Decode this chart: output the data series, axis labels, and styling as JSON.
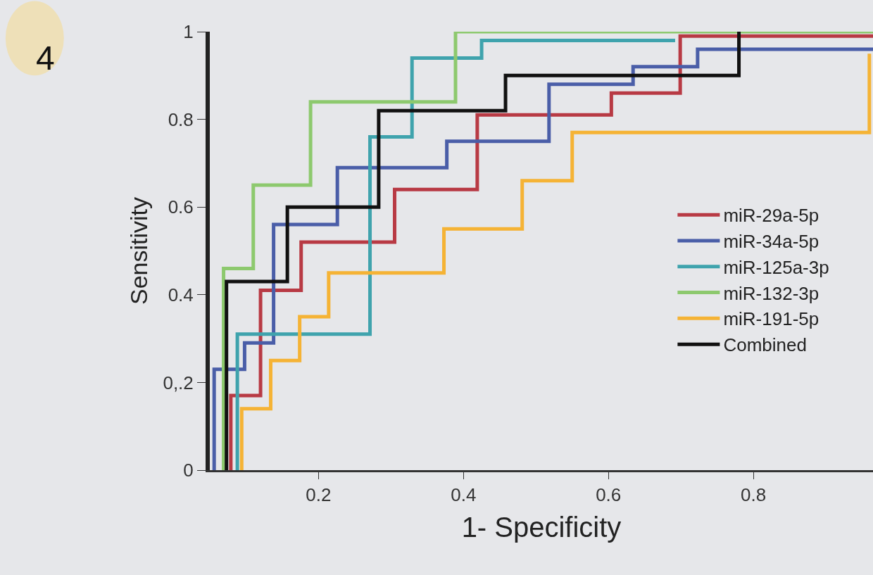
{
  "chart_data": {
    "type": "step",
    "xlabel": "1- Specificity",
    "ylabel": "Sensitivity",
    "annotations": [
      "4"
    ],
    "xlim": [
      0.05,
      0.965
    ],
    "xticks": [
      0.2,
      0.4,
      0.6,
      0.8
    ],
    "ylim": [
      0,
      1
    ],
    "yticks": [
      0,
      {
        "value": 0.2,
        "label": "0,.2"
      },
      0.4,
      0.6,
      0.8,
      1
    ],
    "grid": false,
    "legend": "right",
    "line_style": "solid",
    "marker": "none",
    "series": [
      {
        "name": "miR-29a-5p",
        "color": "#b83a44",
        "x": [
          0.079,
          0.079,
          0.12,
          0.176,
          0.305,
          0.419,
          0.604,
          0.699,
          0.965
        ],
        "values": [
          0,
          0.17,
          0.41,
          0.52,
          0.64,
          0.81,
          0.86,
          0.99,
          0.99
        ]
      },
      {
        "name": "miR-34a-5p",
        "color": "#4a5ea8",
        "x": [
          0.056,
          0.056,
          0.098,
          0.138,
          0.226,
          0.377,
          0.518,
          0.634,
          0.723,
          0.965
        ],
        "values": [
          0,
          0.23,
          0.29,
          0.56,
          0.69,
          0.75,
          0.88,
          0.92,
          0.96,
          0.96
        ]
      },
      {
        "name": "miR-125a-3p",
        "color": "#3fa3ad",
        "x": [
          0.088,
          0.088,
          0.271,
          0.329,
          0.425,
          0.692
        ],
        "values": [
          0,
          0.31,
          0.76,
          0.94,
          0.98,
          0.98
        ]
      },
      {
        "name": "miR-132-3p",
        "color": "#8dc96e",
        "x": [
          0.069,
          0.069,
          0.11,
          0.189,
          0.389,
          0.965
        ],
        "values": [
          0,
          0.46,
          0.65,
          0.84,
          1.0,
          1.0
        ]
      },
      {
        "name": "miR-191-5p",
        "color": "#f5b335",
        "x": [
          0.094,
          0.094,
          0.134,
          0.174,
          0.214,
          0.373,
          0.481,
          0.55,
          0.96,
          0.96
        ],
        "values": [
          0,
          0.14,
          0.25,
          0.35,
          0.45,
          0.55,
          0.66,
          0.77,
          0.77,
          0.95
        ]
      },
      {
        "name": "Combined",
        "color": "#111111",
        "x": [
          0.073,
          0.073,
          0.157,
          0.283,
          0.458,
          0.78
        ],
        "values": [
          0,
          0.43,
          0.6,
          0.82,
          0.9,
          1.0
        ]
      }
    ]
  }
}
